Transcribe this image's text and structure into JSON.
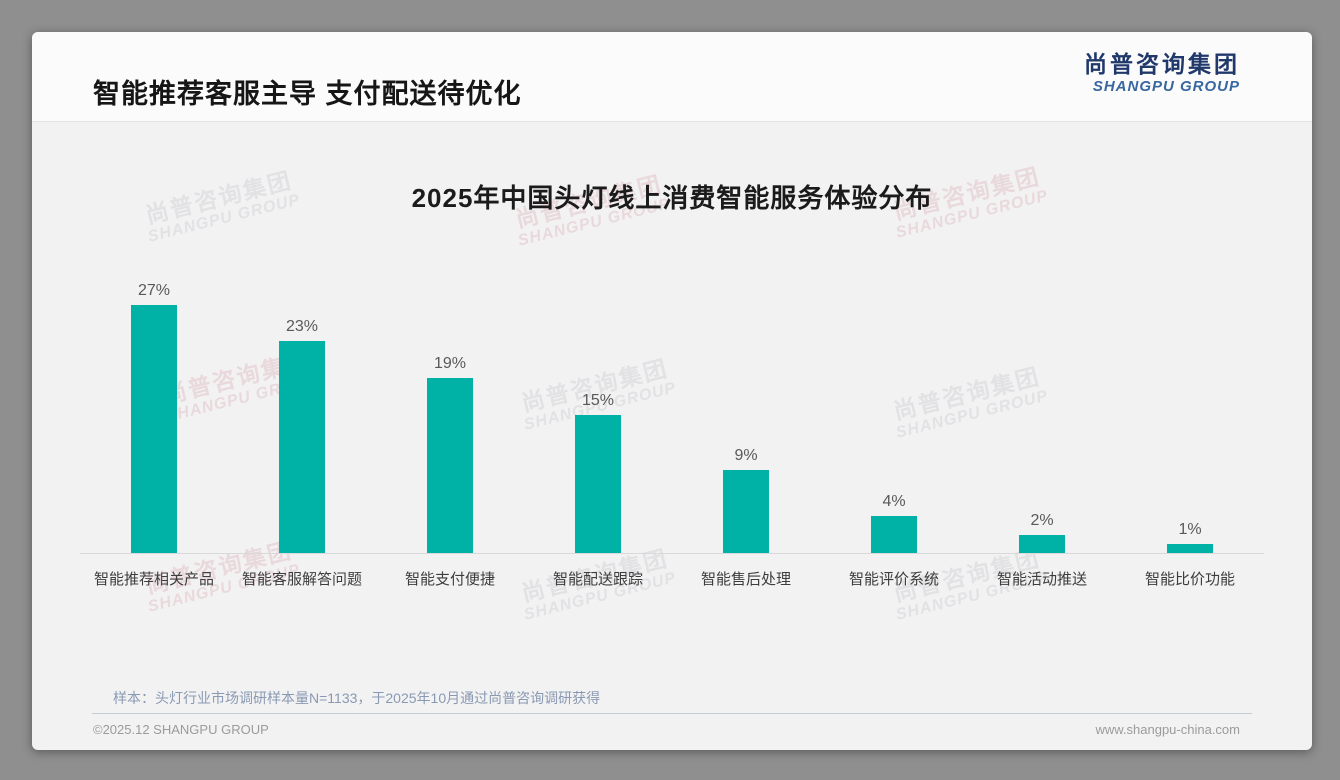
{
  "header": {
    "title": "智能推荐客服主导 支付配送待优化"
  },
  "logo": {
    "cn": "尚普咨询集团",
    "en": "SHANGPU GROUP"
  },
  "watermark": {
    "cn": "尚普咨询集团",
    "en": "SHANGPU GROUP"
  },
  "footnote": "样本：头灯行业市场调研样本量N=1133，于2025年10月通过尚普咨询调研获得",
  "footer": {
    "left": "©2025.12 SHANGPU GROUP",
    "right": "www.shangpu-china.com"
  },
  "colors": {
    "bar_teal": "#00b1a6",
    "logo_navy": "#20386a",
    "logo_blue": "#38679f",
    "note_blue_gray": "#8a99b3"
  },
  "chart_data": {
    "type": "bar",
    "title": "2025年中国头灯线上消费智能服务体验分布",
    "categories": [
      "智能推荐相关产品",
      "智能客服解答问题",
      "智能支付便捷",
      "智能配送跟踪",
      "智能售后处理",
      "智能评价系统",
      "智能活动推送",
      "智能比价功能"
    ],
    "values": [
      27,
      23,
      19,
      15,
      9,
      4,
      2,
      1
    ],
    "value_labels": [
      "27%",
      "23%",
      "19%",
      "15%",
      "9%",
      "4%",
      "2%",
      "1%"
    ],
    "bar_color": "#00b1a6",
    "xlabel": "",
    "ylabel": "",
    "ylim": [
      0,
      30
    ],
    "grid": false,
    "legend": "none",
    "value_labels_position": "above-bars"
  }
}
